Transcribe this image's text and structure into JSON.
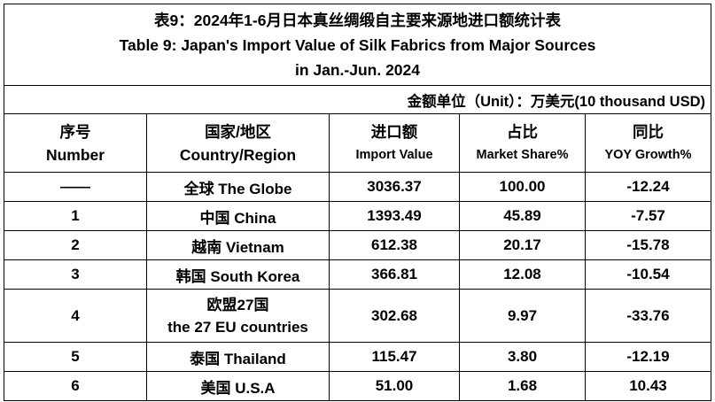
{
  "title": {
    "zh": "表9：2024年1-6月日本真丝绸缎自主要来源地进口额统计表",
    "en_line1": "Table 9: Japan's Import Value of Silk Fabrics from Major Sources",
    "en_line2": "in Jan.-Jun. 2024"
  },
  "unit": "金额单位（Unit）：万美元(10 thousand USD)",
  "headers": {
    "number": {
      "zh": "序号",
      "en": "Number"
    },
    "country": {
      "zh": "国家/地区",
      "en": "Country/Region"
    },
    "import": {
      "zh": "进口额",
      "en": "Import Value"
    },
    "share": {
      "zh": "占比",
      "en": "Market Share%"
    },
    "yoy": {
      "zh": "同比",
      "en": "YOY Growth%"
    }
  },
  "rows": [
    {
      "number": "——",
      "country": "全球 The Globe",
      "country2": "",
      "import": "3036.37",
      "share": "100.00",
      "yoy": "-12.24"
    },
    {
      "number": "1",
      "country": "中国 China",
      "country2": "",
      "import": "1393.49",
      "share": "45.89",
      "yoy": "-7.57"
    },
    {
      "number": "2",
      "country": "越南 Vietnam",
      "country2": "",
      "import": "612.38",
      "share": "20.17",
      "yoy": "-15.78"
    },
    {
      "number": "3",
      "country": "韩国 South Korea",
      "country2": "",
      "import": "366.81",
      "share": "12.08",
      "yoy": "-10.54"
    },
    {
      "number": "4",
      "country": "欧盟27国",
      "country2": "the 27 EU countries",
      "import": "302.68",
      "share": "9.97",
      "yoy": "-33.76"
    },
    {
      "number": "5",
      "country": "泰国 Thailand",
      "country2": "",
      "import": "115.47",
      "share": "3.80",
      "yoy": "-12.19"
    },
    {
      "number": "6",
      "country": "美国 U.S.A",
      "country2": "",
      "import": "51.00",
      "share": "1.68",
      "yoy": "10.43"
    }
  ]
}
